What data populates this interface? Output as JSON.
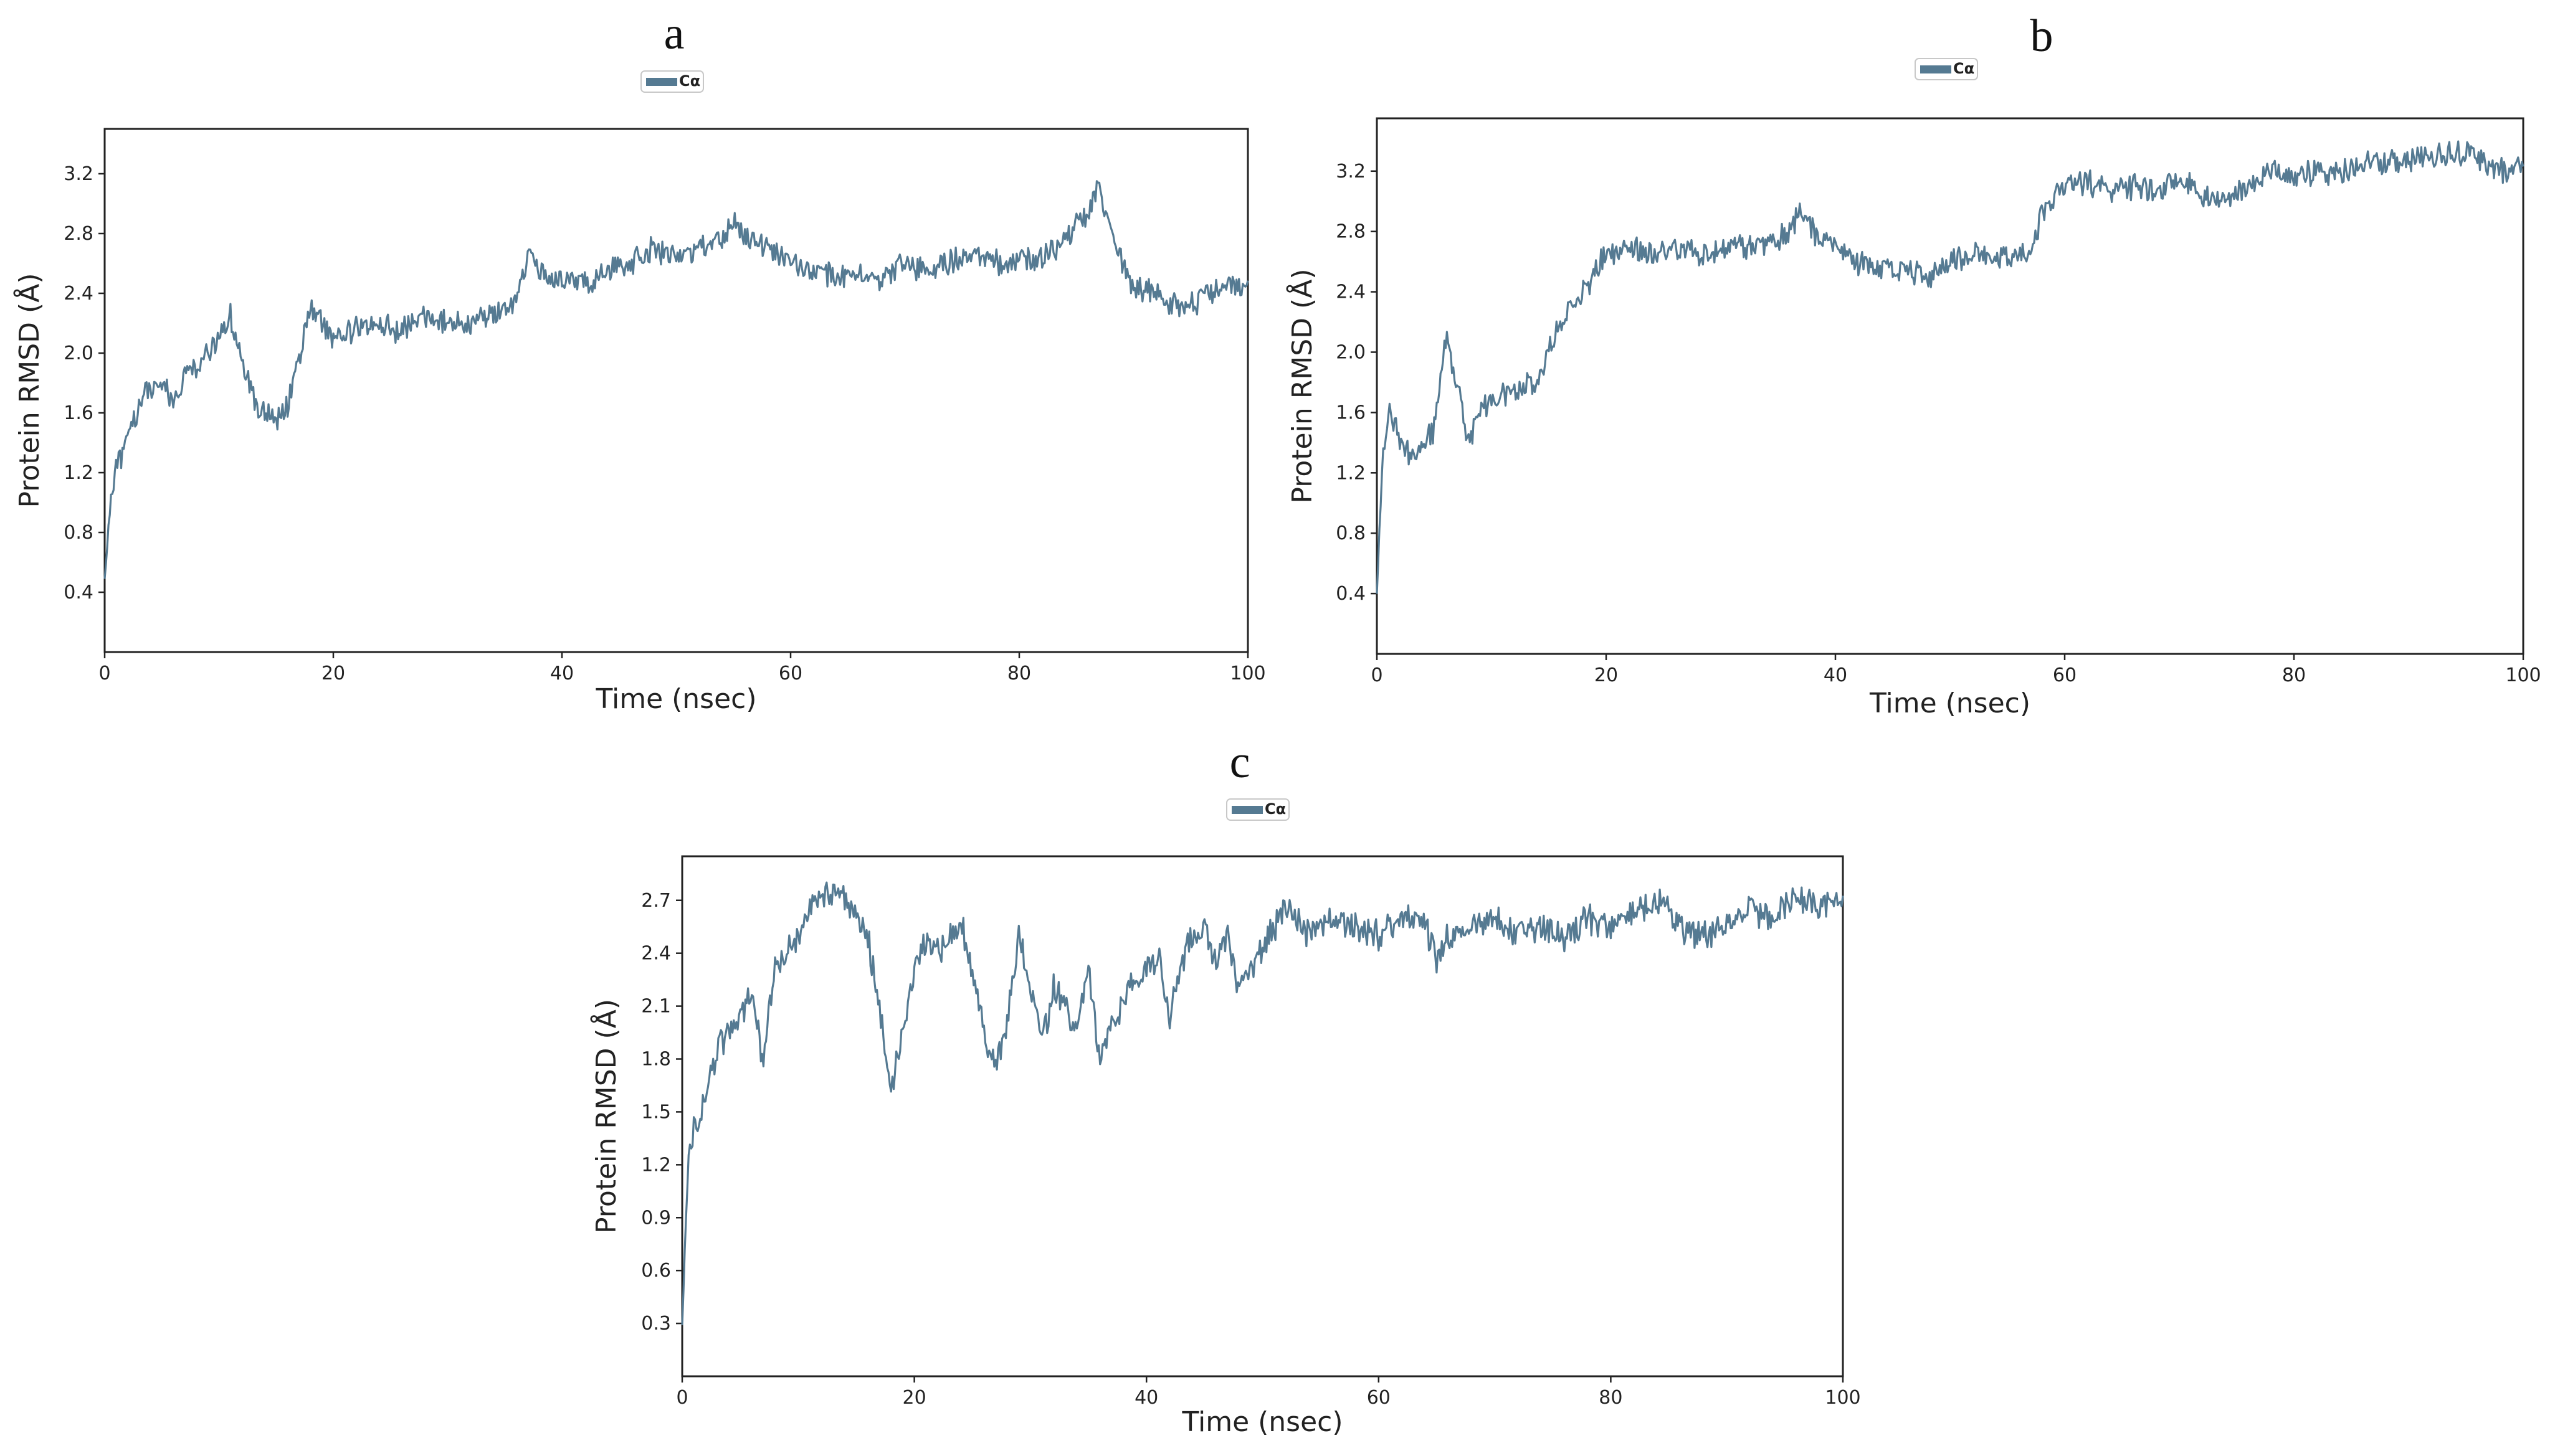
{
  "figure": {
    "colors": {
      "series": "#557a92",
      "axis": "#222222",
      "background": "#ffffff"
    }
  },
  "chart_data": [
    {
      "panel": "a",
      "type": "line",
      "title": "",
      "xlabel": "Time (nsec)",
      "ylabel": "Protein RMSD (Å)",
      "xlim": [
        0,
        100
      ],
      "ylim": [
        0.0,
        3.5
      ],
      "xticks": [
        0,
        20,
        40,
        60,
        80,
        100
      ],
      "yticks": [
        0.4,
        0.8,
        1.2,
        1.6,
        2.0,
        2.4,
        2.8,
        3.2
      ],
      "legend": "Cα",
      "grid": false,
      "series": [
        {
          "name": "Cα",
          "x": [
            0,
            0.5,
            1,
            2,
            3,
            4,
            5,
            6,
            7,
            8,
            9,
            10,
            11,
            12,
            13,
            14,
            15,
            16,
            17,
            18,
            19,
            20,
            22,
            24,
            26,
            28,
            30,
            32,
            34,
            36,
            37,
            38,
            40,
            42,
            44,
            46,
            48,
            50,
            52,
            54,
            55,
            56,
            58,
            60,
            62,
            64,
            66,
            68,
            70,
            72,
            74,
            76,
            78,
            80,
            82,
            84,
            86,
            87,
            88,
            89,
            90,
            92,
            94,
            96,
            98,
            100
          ],
          "values": [
            0.5,
            1.0,
            1.25,
            1.4,
            1.65,
            1.75,
            1.8,
            1.7,
            1.85,
            1.9,
            2.0,
            2.1,
            2.25,
            1.95,
            1.7,
            1.6,
            1.55,
            1.65,
            1.95,
            2.3,
            2.2,
            2.1,
            2.15,
            2.2,
            2.15,
            2.25,
            2.2,
            2.2,
            2.25,
            2.35,
            2.65,
            2.55,
            2.5,
            2.45,
            2.55,
            2.6,
            2.7,
            2.65,
            2.7,
            2.75,
            2.9,
            2.8,
            2.7,
            2.6,
            2.55,
            2.5,
            2.55,
            2.5,
            2.6,
            2.55,
            2.6,
            2.65,
            2.6,
            2.6,
            2.65,
            2.75,
            2.95,
            3.1,
            2.8,
            2.6,
            2.45,
            2.4,
            2.3,
            2.35,
            2.5,
            2.45
          ]
        }
      ]
    },
    {
      "panel": "b",
      "type": "line",
      "title": "",
      "xlabel": "Time (nsec)",
      "ylabel": "Protein RMSD (Å)",
      "xlim": [
        0,
        100
      ],
      "ylim": [
        0.0,
        3.55
      ],
      "xticks": [
        0,
        20,
        40,
        60,
        80,
        100
      ],
      "yticks": [
        0.4,
        0.8,
        1.2,
        1.6,
        2.0,
        2.4,
        2.8,
        3.2
      ],
      "legend": "Cα",
      "grid": false,
      "series": [
        {
          "name": "Cα",
          "x": [
            0,
            0.5,
            1,
            2,
            3,
            4,
            5,
            6,
            7,
            8,
            9,
            10,
            12,
            14,
            16,
            18,
            20,
            22,
            24,
            26,
            28,
            30,
            32,
            34,
            36,
            37,
            38,
            40,
            42,
            44,
            46,
            48,
            50,
            52,
            54,
            56,
            57,
            58,
            60,
            62,
            64,
            66,
            68,
            70,
            72,
            74,
            76,
            78,
            80,
            82,
            84,
            86,
            88,
            90,
            92,
            94,
            96,
            98,
            100
          ],
          "values": [
            0.4,
            1.3,
            1.6,
            1.45,
            1.3,
            1.35,
            1.5,
            2.1,
            1.8,
            1.4,
            1.6,
            1.7,
            1.75,
            1.8,
            2.2,
            2.4,
            2.65,
            2.7,
            2.65,
            2.7,
            2.65,
            2.7,
            2.7,
            2.72,
            2.8,
            2.95,
            2.8,
            2.7,
            2.6,
            2.55,
            2.55,
            2.5,
            2.6,
            2.65,
            2.62,
            2.65,
            2.7,
            2.9,
            3.1,
            3.12,
            3.05,
            3.1,
            3.05,
            3.15,
            3.05,
            3.0,
            3.12,
            3.2,
            3.15,
            3.2,
            3.18,
            3.28,
            3.25,
            3.28,
            3.3,
            3.32,
            3.3,
            3.2,
            3.2
          ]
        }
      ]
    },
    {
      "panel": "c",
      "type": "line",
      "title": "",
      "xlabel": "Time (nsec)",
      "ylabel": "Protein RMSD (Å)",
      "xlim": [
        0,
        100
      ],
      "ylim": [
        0.0,
        2.95
      ],
      "xticks": [
        0,
        20,
        40,
        60,
        80,
        100
      ],
      "yticks": [
        0.3,
        0.6,
        0.9,
        1.2,
        1.5,
        1.8,
        2.1,
        2.4,
        2.7
      ],
      "legend": "Cα",
      "grid": false,
      "series": [
        {
          "name": "Cα",
          "x": [
            0,
            0.5,
            1,
            2,
            3,
            4,
            5,
            6,
            7,
            8,
            9,
            10,
            11,
            12,
            13,
            14,
            15,
            16,
            17,
            18,
            19,
            20,
            21,
            22,
            23,
            24,
            25,
            26,
            27,
            28,
            29,
            30,
            31,
            32,
            33,
            34,
            35,
            36,
            37,
            38,
            39,
            40,
            41,
            42,
            43,
            44,
            45,
            46,
            47,
            48,
            49,
            50,
            51,
            52,
            54,
            56,
            58,
            60,
            62,
            64,
            65,
            66,
            68,
            70,
            72,
            74,
            76,
            78,
            80,
            82,
            84,
            86,
            88,
            90,
            92,
            94,
            96,
            98,
            100
          ],
          "values": [
            0.3,
            1.2,
            1.4,
            1.6,
            1.85,
            1.95,
            2.05,
            2.2,
            1.75,
            2.35,
            2.4,
            2.5,
            2.65,
            2.7,
            2.75,
            2.72,
            2.6,
            2.5,
            2.1,
            1.65,
            1.95,
            2.3,
            2.45,
            2.4,
            2.5,
            2.6,
            2.3,
            1.95,
            1.75,
            2.0,
            2.5,
            2.2,
            1.9,
            2.2,
            2.1,
            1.95,
            2.3,
            1.8,
            2.0,
            2.1,
            2.25,
            2.3,
            2.4,
            2.05,
            2.35,
            2.5,
            2.55,
            2.35,
            2.5,
            2.2,
            2.3,
            2.45,
            2.55,
            2.65,
            2.5,
            2.6,
            2.55,
            2.5,
            2.6,
            2.55,
            2.35,
            2.5,
            2.55,
            2.6,
            2.5,
            2.55,
            2.5,
            2.6,
            2.55,
            2.65,
            2.7,
            2.55,
            2.5,
            2.55,
            2.65,
            2.6,
            2.7,
            2.65,
            2.7
          ]
        }
      ]
    }
  ]
}
